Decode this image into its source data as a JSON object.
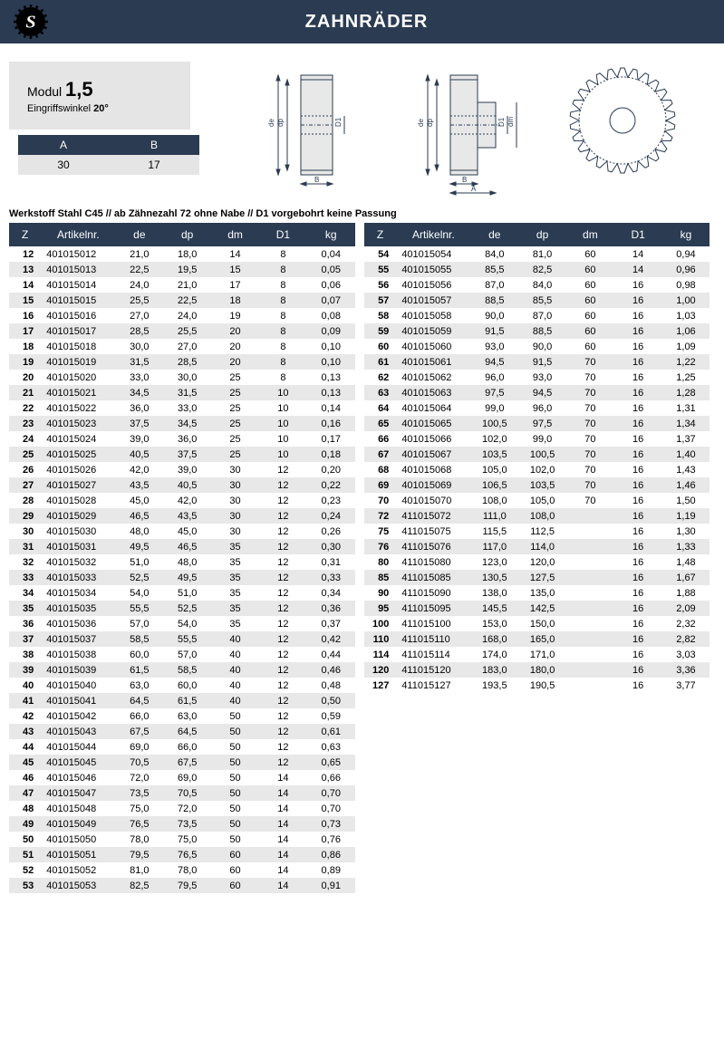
{
  "header": {
    "title": "ZAHNRÄDER"
  },
  "modul": {
    "label": "Modul",
    "value": "1,5",
    "angle_label": "Eingriffswinkel",
    "angle_value": "20°"
  },
  "ab": {
    "headers": [
      "A",
      "B"
    ],
    "values": [
      "30",
      "17"
    ]
  },
  "note": "Werkstoff Stahl C45 // ab Zähnezahl 72 ohne Nabe // D1 vorgebohrt keine Passung",
  "columns": [
    "Z",
    "Artikelnr.",
    "de",
    "dp",
    "dm",
    "D1",
    "kg"
  ],
  "left_rows": [
    [
      "12",
      "401015012",
      "21,0",
      "18,0",
      "14",
      "8",
      "0,04"
    ],
    [
      "13",
      "401015013",
      "22,5",
      "19,5",
      "15",
      "8",
      "0,05"
    ],
    [
      "14",
      "401015014",
      "24,0",
      "21,0",
      "17",
      "8",
      "0,06"
    ],
    [
      "15",
      "401015015",
      "25,5",
      "22,5",
      "18",
      "8",
      "0,07"
    ],
    [
      "16",
      "401015016",
      "27,0",
      "24,0",
      "19",
      "8",
      "0,08"
    ],
    [
      "17",
      "401015017",
      "28,5",
      "25,5",
      "20",
      "8",
      "0,09"
    ],
    [
      "18",
      "401015018",
      "30,0",
      "27,0",
      "20",
      "8",
      "0,10"
    ],
    [
      "19",
      "401015019",
      "31,5",
      "28,5",
      "20",
      "8",
      "0,10"
    ],
    [
      "20",
      "401015020",
      "33,0",
      "30,0",
      "25",
      "8",
      "0,13"
    ],
    [
      "21",
      "401015021",
      "34,5",
      "31,5",
      "25",
      "10",
      "0,13"
    ],
    [
      "22",
      "401015022",
      "36,0",
      "33,0",
      "25",
      "10",
      "0,14"
    ],
    [
      "23",
      "401015023",
      "37,5",
      "34,5",
      "25",
      "10",
      "0,16"
    ],
    [
      "24",
      "401015024",
      "39,0",
      "36,0",
      "25",
      "10",
      "0,17"
    ],
    [
      "25",
      "401015025",
      "40,5",
      "37,5",
      "25",
      "10",
      "0,18"
    ],
    [
      "26",
      "401015026",
      "42,0",
      "39,0",
      "30",
      "12",
      "0,20"
    ],
    [
      "27",
      "401015027",
      "43,5",
      "40,5",
      "30",
      "12",
      "0,22"
    ],
    [
      "28",
      "401015028",
      "45,0",
      "42,0",
      "30",
      "12",
      "0,23"
    ],
    [
      "29",
      "401015029",
      "46,5",
      "43,5",
      "30",
      "12",
      "0,24"
    ],
    [
      "30",
      "401015030",
      "48,0",
      "45,0",
      "30",
      "12",
      "0,26"
    ],
    [
      "31",
      "401015031",
      "49,5",
      "46,5",
      "35",
      "12",
      "0,30"
    ],
    [
      "32",
      "401015032",
      "51,0",
      "48,0",
      "35",
      "12",
      "0,31"
    ],
    [
      "33",
      "401015033",
      "52,5",
      "49,5",
      "35",
      "12",
      "0,33"
    ],
    [
      "34",
      "401015034",
      "54,0",
      "51,0",
      "35",
      "12",
      "0,34"
    ],
    [
      "35",
      "401015035",
      "55,5",
      "52,5",
      "35",
      "12",
      "0,36"
    ],
    [
      "36",
      "401015036",
      "57,0",
      "54,0",
      "35",
      "12",
      "0,37"
    ],
    [
      "37",
      "401015037",
      "58,5",
      "55,5",
      "40",
      "12",
      "0,42"
    ],
    [
      "38",
      "401015038",
      "60,0",
      "57,0",
      "40",
      "12",
      "0,44"
    ],
    [
      "39",
      "401015039",
      "61,5",
      "58,5",
      "40",
      "12",
      "0,46"
    ],
    [
      "40",
      "401015040",
      "63,0",
      "60,0",
      "40",
      "12",
      "0,48"
    ],
    [
      "41",
      "401015041",
      "64,5",
      "61,5",
      "40",
      "12",
      "0,50"
    ],
    [
      "42",
      "401015042",
      "66,0",
      "63,0",
      "50",
      "12",
      "0,59"
    ],
    [
      "43",
      "401015043",
      "67,5",
      "64,5",
      "50",
      "12",
      "0,61"
    ],
    [
      "44",
      "401015044",
      "69,0",
      "66,0",
      "50",
      "12",
      "0,63"
    ],
    [
      "45",
      "401015045",
      "70,5",
      "67,5",
      "50",
      "12",
      "0,65"
    ],
    [
      "46",
      "401015046",
      "72,0",
      "69,0",
      "50",
      "14",
      "0,66"
    ],
    [
      "47",
      "401015047",
      "73,5",
      "70,5",
      "50",
      "14",
      "0,70"
    ],
    [
      "48",
      "401015048",
      "75,0",
      "72,0",
      "50",
      "14",
      "0,70"
    ],
    [
      "49",
      "401015049",
      "76,5",
      "73,5",
      "50",
      "14",
      "0,73"
    ],
    [
      "50",
      "401015050",
      "78,0",
      "75,0",
      "50",
      "14",
      "0,76"
    ],
    [
      "51",
      "401015051",
      "79,5",
      "76,5",
      "60",
      "14",
      "0,86"
    ],
    [
      "52",
      "401015052",
      "81,0",
      "78,0",
      "60",
      "14",
      "0,89"
    ],
    [
      "53",
      "401015053",
      "82,5",
      "79,5",
      "60",
      "14",
      "0,91"
    ]
  ],
  "right_rows": [
    [
      "54",
      "401015054",
      "84,0",
      "81,0",
      "60",
      "14",
      "0,94"
    ],
    [
      "55",
      "401015055",
      "85,5",
      "82,5",
      "60",
      "14",
      "0,96"
    ],
    [
      "56",
      "401015056",
      "87,0",
      "84,0",
      "60",
      "16",
      "0,98"
    ],
    [
      "57",
      "401015057",
      "88,5",
      "85,5",
      "60",
      "16",
      "1,00"
    ],
    [
      "58",
      "401015058",
      "90,0",
      "87,0",
      "60",
      "16",
      "1,03"
    ],
    [
      "59",
      "401015059",
      "91,5",
      "88,5",
      "60",
      "16",
      "1,06"
    ],
    [
      "60",
      "401015060",
      "93,0",
      "90,0",
      "60",
      "16",
      "1,09"
    ],
    [
      "61",
      "401015061",
      "94,5",
      "91,5",
      "70",
      "16",
      "1,22"
    ],
    [
      "62",
      "401015062",
      "96,0",
      "93,0",
      "70",
      "16",
      "1,25"
    ],
    [
      "63",
      "401015063",
      "97,5",
      "94,5",
      "70",
      "16",
      "1,28"
    ],
    [
      "64",
      "401015064",
      "99,0",
      "96,0",
      "70",
      "16",
      "1,31"
    ],
    [
      "65",
      "401015065",
      "100,5",
      "97,5",
      "70",
      "16",
      "1,34"
    ],
    [
      "66",
      "401015066",
      "102,0",
      "99,0",
      "70",
      "16",
      "1,37"
    ],
    [
      "67",
      "401015067",
      "103,5",
      "100,5",
      "70",
      "16",
      "1,40"
    ],
    [
      "68",
      "401015068",
      "105,0",
      "102,0",
      "70",
      "16",
      "1,43"
    ],
    [
      "69",
      "401015069",
      "106,5",
      "103,5",
      "70",
      "16",
      "1,46"
    ],
    [
      "70",
      "401015070",
      "108,0",
      "105,0",
      "70",
      "16",
      "1,50"
    ],
    [
      "72",
      "411015072",
      "111,0",
      "108,0",
      "",
      "16",
      "1,19"
    ],
    [
      "75",
      "411015075",
      "115,5",
      "112,5",
      "",
      "16",
      "1,30"
    ],
    [
      "76",
      "411015076",
      "117,0",
      "114,0",
      "",
      "16",
      "1,33"
    ],
    [
      "80",
      "411015080",
      "123,0",
      "120,0",
      "",
      "16",
      "1,48"
    ],
    [
      "85",
      "411015085",
      "130,5",
      "127,5",
      "",
      "16",
      "1,67"
    ],
    [
      "90",
      "411015090",
      "138,0",
      "135,0",
      "",
      "16",
      "1,88"
    ],
    [
      "95",
      "411015095",
      "145,5",
      "142,5",
      "",
      "16",
      "2,09"
    ],
    [
      "100",
      "411015100",
      "153,0",
      "150,0",
      "",
      "16",
      "2,32"
    ],
    [
      "110",
      "411015110",
      "168,0",
      "165,0",
      "",
      "16",
      "2,82"
    ],
    [
      "114",
      "411015114",
      "174,0",
      "171,0",
      "",
      "16",
      "3,03"
    ],
    [
      "120",
      "411015120",
      "183,0",
      "180,0",
      "",
      "16",
      "3,36"
    ],
    [
      "127",
      "411015127",
      "193,5",
      "190,5",
      "",
      "16",
      "3,77"
    ]
  ],
  "colors": {
    "header_bg": "#2a3b52",
    "header_fg": "#ffffff",
    "box_bg": "#e5e5e5",
    "row_alt": "#e8e8e8",
    "diagram_stroke": "#2a3b52"
  }
}
